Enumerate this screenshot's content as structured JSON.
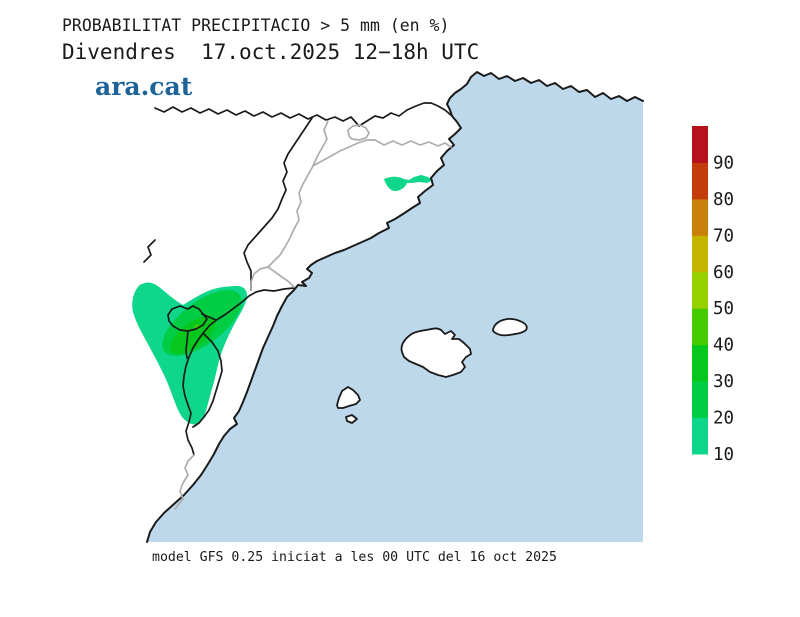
{
  "header": {
    "title": "PROBABILITAT PRECIPITACIO > 5 mm (en %)",
    "subtitle": "Divendres  17.oct.2025 12−18h UTC",
    "brand": "ara.cat",
    "brand_color": "#1C6399"
  },
  "footer": {
    "caption": "model GFS 0.25 iniciat a les 00 UTC del 16 oct 2025"
  },
  "colorbar": {
    "ticks": [
      "10",
      "20",
      "30",
      "40",
      "50",
      "60",
      "70",
      "80",
      "90"
    ],
    "segment_colors_bottom_to_top": [
      "#0ED68A",
      "#00CC44",
      "#06C81C",
      "#46CB00",
      "#96D200",
      "#C3B400",
      "#C8800A",
      "#C23C0C",
      "#B5121B"
    ]
  },
  "map": {
    "sea_color": "#BDD8EB",
    "land_color": "#FFFFFF",
    "coastline_color": "#1A1A1A",
    "secondary_border_color": "#ADADAD",
    "level_colors": {
      "p10": "#0ED68A",
      "p20": "#00CC44",
      "p30": "#06C81C",
      "p40": "#46CB00"
    },
    "precipitation_areas": [
      {
        "area": "main-southwest-interior-blob",
        "probability_range_pct": "10–40"
      },
      {
        "area": "small-central-catalonia-spot",
        "probability_range_pct": "10–20"
      }
    ]
  }
}
